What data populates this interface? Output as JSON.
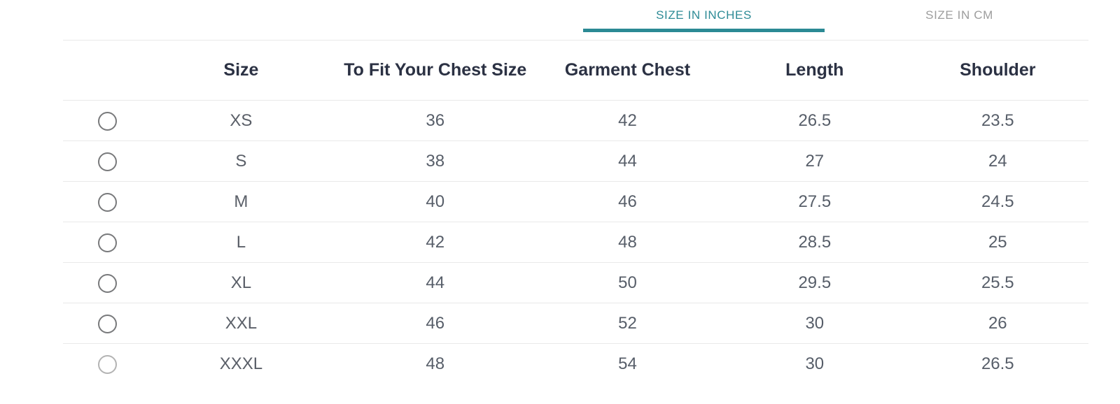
{
  "colors": {
    "accent_teal": "#2e8b96",
    "inactive_tab_gray": "#9d9d9d",
    "header_text": "#2b3143",
    "cell_text": "#575e69",
    "divider": "#e9e9e9"
  },
  "tabs": [
    {
      "label": "SIZE IN INCHES",
      "active": true
    },
    {
      "label": "SIZE IN CM",
      "active": false
    }
  ],
  "size_chart": {
    "columns": [
      "Size",
      "To Fit Your Chest Size",
      "Garment Chest",
      "Length",
      "Shoulder"
    ],
    "rows": [
      {
        "size": "XS",
        "to_fit_chest": "36",
        "garment_chest": "42",
        "length": "26.5",
        "shoulder": "23.5",
        "selected": false,
        "muted": false
      },
      {
        "size": "S",
        "to_fit_chest": "38",
        "garment_chest": "44",
        "length": "27",
        "shoulder": "24",
        "selected": false,
        "muted": false
      },
      {
        "size": "M",
        "to_fit_chest": "40",
        "garment_chest": "46",
        "length": "27.5",
        "shoulder": "24.5",
        "selected": false,
        "muted": false
      },
      {
        "size": "L",
        "to_fit_chest": "42",
        "garment_chest": "48",
        "length": "28.5",
        "shoulder": "25",
        "selected": false,
        "muted": false
      },
      {
        "size": "XL",
        "to_fit_chest": "44",
        "garment_chest": "50",
        "length": "29.5",
        "shoulder": "25.5",
        "selected": false,
        "muted": false
      },
      {
        "size": "XXL",
        "to_fit_chest": "46",
        "garment_chest": "52",
        "length": "30",
        "shoulder": "26",
        "selected": false,
        "muted": false
      },
      {
        "size": "XXXL",
        "to_fit_chest": "48",
        "garment_chest": "54",
        "length": "30",
        "shoulder": "26.5",
        "selected": false,
        "muted": true
      }
    ]
  }
}
